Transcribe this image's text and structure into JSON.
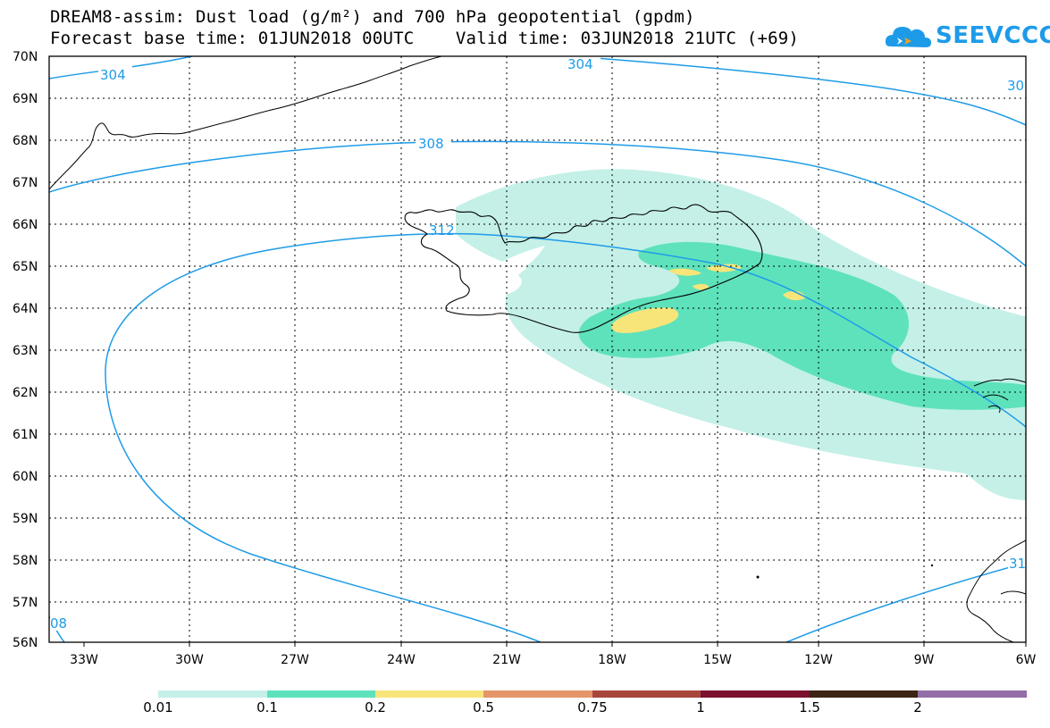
{
  "title": {
    "line1": "DREAM8-assim: Dust load (g/m²) and 700 hPa geopotential (gpdm)",
    "line2": "Forecast base time: 01JUN2018 00UTC    Valid time: 03JUN2018 21UTC (+69)"
  },
  "logo": {
    "text": "SEEVCCC",
    "icon": "cloud-logo-icon"
  },
  "map": {
    "lat_labels": [
      "70N",
      "69N",
      "68N",
      "67N",
      "66N",
      "65N",
      "64N",
      "63N",
      "62N",
      "61N",
      "60N",
      "59N",
      "58N",
      "57N",
      "56N"
    ],
    "lon_labels": [
      "33W",
      "30W",
      "27W",
      "24W",
      "21W",
      "18W",
      "15W",
      "12W",
      "9W",
      "6W"
    ],
    "contour_labels": [
      "304",
      "304",
      "30",
      "308",
      "312",
      "08",
      "31"
    ]
  },
  "colorbar": {
    "labels": [
      "0.01",
      "0.1",
      "0.2",
      "0.5",
      "0.75",
      "1",
      "1.5",
      "2"
    ],
    "colors": [
      "#c4f0e8",
      "#5ee2bc",
      "#f7e57a",
      "#e4956a",
      "#a8463c",
      "#7a0f2e",
      "#3b2414",
      "#946ea8"
    ]
  },
  "colors": {
    "contour": "#1e9be8",
    "coastline": "#000000",
    "dust_low": "#c4f0e8",
    "dust_mid": "#5ee2bc",
    "dust_high": "#f7e57a"
  }
}
